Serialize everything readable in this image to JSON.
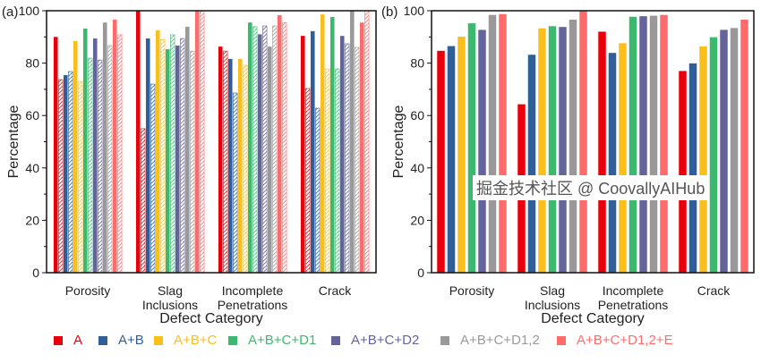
{
  "watermark": "掘金技术社区 @ CoovallyAIHub",
  "legend": [
    {
      "name": "A",
      "color": "#e8000b"
    },
    {
      "name": "A+B",
      "color": "#2e5f99"
    },
    {
      "name": "A+B+C",
      "color": "#fbbf1c"
    },
    {
      "name": "A+B+C+D1",
      "color": "#3cb96e"
    },
    {
      "name": "A+B+C+D2",
      "color": "#64649a"
    },
    {
      "name": "A+B+C+D1,2",
      "color": "#999999"
    },
    {
      "name": "A+B+C+D1,2+E",
      "color": "#ff6b6b"
    }
  ],
  "chart_data": [
    {
      "panel_label": "(a)",
      "type": "bar",
      "xlabel": "Defect Category",
      "ylabel": "Percentage",
      "ylim": [
        0,
        100
      ],
      "yticks": [
        "0",
        "20",
        "40",
        "60",
        "80",
        "100"
      ],
      "categories": [
        [
          "Porosity"
        ],
        [
          "Slag",
          "Inclusions"
        ],
        [
          "Incomplete",
          "Penetrations"
        ],
        [
          "Crack"
        ]
      ],
      "series": [
        {
          "name": "A",
          "color": "#e8000b",
          "values": [
            90.0,
            100,
            86.3,
            90.4
          ],
          "hatched_values": [
            73.7,
            55.0,
            84.6,
            70.3
          ]
        },
        {
          "name": "A+B",
          "color": "#2e5f99",
          "values": [
            75.4,
            89.4,
            81.6,
            92.2
          ],
          "hatched_values": [
            76.8,
            72.0,
            68.6,
            62.8
          ]
        },
        {
          "name": "A+B+C",
          "color": "#fbbf1c",
          "values": [
            88.4,
            92.5,
            81.6,
            98.6
          ],
          "hatched_values": [
            73.0,
            89.0,
            79.2,
            77.8
          ]
        },
        {
          "name": "A+B+C+D1",
          "color": "#3cb96e",
          "values": [
            93.2,
            85.3,
            95.5,
            97.6
          ],
          "hatched_values": [
            81.9,
            90.8,
            93.9,
            77.8
          ]
        },
        {
          "name": "A+B+C+D2",
          "color": "#64649a",
          "values": [
            89.4,
            86.7,
            91.0,
            90.4
          ],
          "hatched_values": [
            81.2,
            89.4,
            94.2,
            87.4
          ]
        },
        {
          "name": "A+B+C+D1,2",
          "color": "#999999",
          "values": [
            95.5,
            93.9,
            86.3,
            100
          ],
          "hatched_values": [
            86.7,
            84.6,
            94.2,
            86.0
          ]
        },
        {
          "name": "A+B+C+D1,2+E",
          "color": "#ff6b6b",
          "values": [
            96.6,
            100,
            98.3,
            95.5
          ],
          "hatched_values": [
            90.8,
            100,
            95.5,
            100
          ]
        }
      ]
    },
    {
      "panel_label": "(b)",
      "type": "bar",
      "xlabel": "Defect Category",
      "ylabel": "Percentage",
      "ylim": [
        0,
        100
      ],
      "yticks": [
        "0",
        "20",
        "40",
        "60",
        "80",
        "100"
      ],
      "categories": [
        [
          "Porosity"
        ],
        [
          "Slag",
          "Inclusions"
        ],
        [
          "Incomplete",
          "Penetrations"
        ],
        [
          "Crack"
        ]
      ],
      "series": [
        {
          "name": "A",
          "color": "#e8000b",
          "values": [
            84.7,
            64.3,
            92.0,
            77.0
          ]
        },
        {
          "name": "A+B",
          "color": "#2e5f99",
          "values": [
            86.5,
            83.2,
            83.9,
            79.9
          ]
        },
        {
          "name": "A+B+C",
          "color": "#fbbf1c",
          "values": [
            90.1,
            93.3,
            87.6,
            86.4
          ]
        },
        {
          "name": "A+B+C+D1",
          "color": "#3cb96e",
          "values": [
            95.2,
            94.1,
            97.7,
            89.9
          ]
        },
        {
          "name": "A+B+C+D2",
          "color": "#64649a",
          "values": [
            92.7,
            93.8,
            97.9,
            92.7
          ]
        },
        {
          "name": "A+B+C+D1,2",
          "color": "#999999",
          "values": [
            98.4,
            96.6,
            98.1,
            93.4
          ]
        },
        {
          "name": "A+B+C+D1,2+E",
          "color": "#ff6b6b",
          "values": [
            98.7,
            99.8,
            98.4,
            96.6
          ]
        }
      ]
    }
  ]
}
